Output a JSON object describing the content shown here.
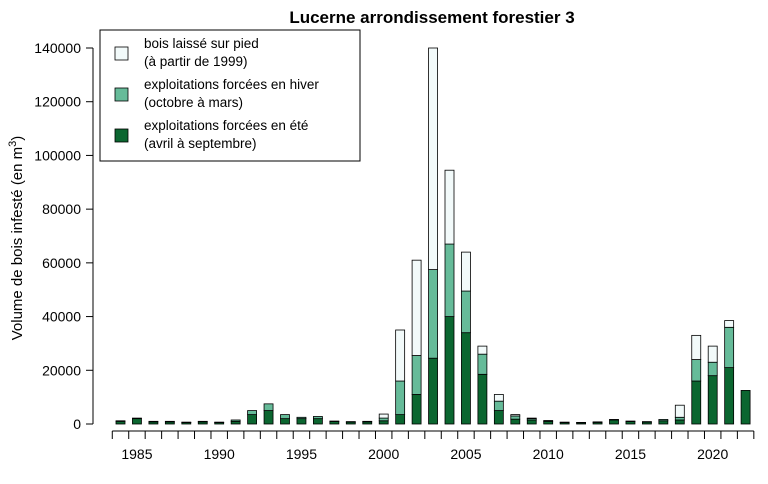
{
  "chart_data": {
    "type": "bar",
    "stacked": true,
    "title": "Lucerne arrondissement forestier 3",
    "ylabel": "Volume de bois infesté (en m",
    "ylabel_superscript": "3",
    "ylabel_suffix": ")",
    "ylim": [
      0,
      140000
    ],
    "yticks": [
      0,
      20000,
      40000,
      60000,
      80000,
      100000,
      120000,
      140000
    ],
    "xticks": [
      1985,
      1990,
      1995,
      2000,
      2005,
      2010,
      2015,
      2020
    ],
    "legend_position": "top-left",
    "years": [
      1984,
      1985,
      1986,
      1987,
      1988,
      1989,
      1990,
      1991,
      1992,
      1993,
      1994,
      1995,
      1996,
      1997,
      1998,
      1999,
      2000,
      2001,
      2002,
      2003,
      2004,
      2005,
      2006,
      2007,
      2008,
      2009,
      2010,
      2011,
      2012,
      2013,
      2014,
      2015,
      2016,
      2017,
      2018,
      2019,
      2020,
      2021,
      2022
    ],
    "series": [
      {
        "name": "exploitations forcées en été\n(avril à septembre)",
        "color": "#0b6630",
        "values": [
          1000,
          2000,
          800,
          800,
          600,
          800,
          600,
          1000,
          3500,
          5000,
          2000,
          2000,
          2000,
          900,
          700,
          800,
          1200,
          3500,
          11000,
          24500,
          40000,
          34000,
          18500,
          5000,
          1800,
          1500,
          1000,
          500,
          500,
          600,
          1500,
          900,
          700,
          1200,
          1500,
          16000,
          18000,
          21000,
          12500
        ]
      },
      {
        "name": "exploitations forcées en hiver\n(octobre à mars)",
        "color": "#66bb99",
        "values": [
          200,
          200,
          200,
          200,
          100,
          200,
          100,
          500,
          1500,
          2500,
          1500,
          500,
          800,
          200,
          200,
          200,
          1000,
          12500,
          14500,
          33000,
          27000,
          15500,
          7500,
          3500,
          1200,
          500,
          300,
          200,
          100,
          200,
          200,
          200,
          200,
          500,
          1000,
          8000,
          5000,
          15000,
          0
        ]
      },
      {
        "name": "bois laissé sur pied\n(à partir de 1999)",
        "color": "#f2fafa",
        "values": [
          0,
          0,
          0,
          0,
          0,
          0,
          0,
          0,
          0,
          0,
          0,
          0,
          0,
          0,
          0,
          0,
          1500,
          19000,
          35500,
          82500,
          27500,
          14500,
          3000,
          2500,
          500,
          200,
          0,
          0,
          0,
          0,
          0,
          0,
          0,
          0,
          4500,
          9000,
          6000,
          2500,
          0
        ]
      }
    ],
    "legend": [
      {
        "line1": "bois laissé sur pied",
        "line2": "(à partir de 1999)",
        "color": "#f2fafa"
      },
      {
        "line1": "exploitations forcées en hiver",
        "line2": "(octobre à mars)",
        "color": "#66bb99"
      },
      {
        "line1": "exploitations forcées en été",
        "line2": "(avril à septembre)",
        "color": "#0b6630"
      }
    ]
  }
}
